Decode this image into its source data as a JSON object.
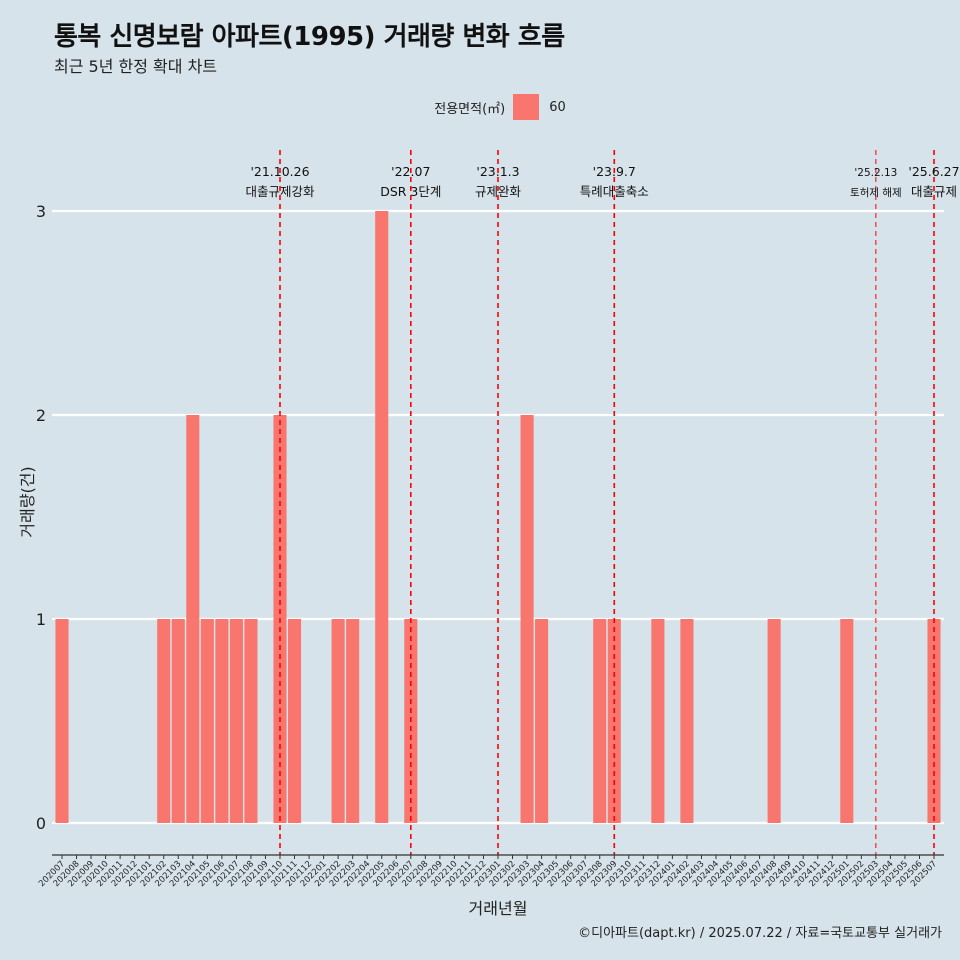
{
  "title": "통복 신명보람 아파트(1995) 거래량 변화 흐름",
  "subtitle": "최근 5년 한정 확대 차트",
  "legend": {
    "title": "전용면적(㎡)",
    "label": "60"
  },
  "caption": "©디아파트(dapt.kr) / 2025.07.22 / 자료=국토교통부 실거래가",
  "colors": {
    "background": "#d7e3ea",
    "bar": "#f8766d",
    "grid": "#ffffff",
    "event_line": "#ff0000",
    "text": "#222222"
  },
  "chart_data": {
    "type": "bar",
    "xlabel": "거래년월",
    "ylabel": "거래량(건)",
    "ylim": [
      0,
      3
    ],
    "yticks": [
      0,
      1,
      2,
      3
    ],
    "grid": true,
    "legend_position": "top",
    "categories": [
      "202007",
      "202008",
      "202009",
      "202010",
      "202011",
      "202012",
      "202101",
      "202102",
      "202103",
      "202104",
      "202105",
      "202106",
      "202107",
      "202108",
      "202109",
      "202110",
      "202111",
      "202112",
      "202201",
      "202202",
      "202203",
      "202204",
      "202205",
      "202206",
      "202207",
      "202208",
      "202209",
      "202210",
      "202211",
      "202212",
      "202301",
      "202302",
      "202303",
      "202304",
      "202305",
      "202306",
      "202307",
      "202308",
      "202309",
      "202310",
      "202311",
      "202312",
      "202401",
      "202402",
      "202403",
      "202404",
      "202405",
      "202406",
      "202407",
      "202408",
      "202409",
      "202410",
      "202411",
      "202412",
      "202501",
      "202502",
      "202503",
      "202504",
      "202505",
      "202506",
      "202507"
    ],
    "series": [
      {
        "name": "60",
        "values": [
          1,
          0,
          0,
          0,
          0,
          0,
          0,
          1,
          1,
          2,
          1,
          1,
          1,
          1,
          0,
          2,
          1,
          0,
          0,
          1,
          1,
          0,
          3,
          0,
          1,
          0,
          0,
          0,
          0,
          0,
          0,
          0,
          2,
          1,
          0,
          0,
          0,
          1,
          1,
          0,
          0,
          1,
          0,
          1,
          0,
          0,
          0,
          0,
          0,
          1,
          0,
          0,
          0,
          0,
          1,
          0,
          0,
          0,
          0,
          0,
          1
        ]
      }
    ],
    "events": [
      {
        "category": "202110",
        "date": "'21.10.26",
        "label": "대출규제강화",
        "small": false
      },
      {
        "category": "202207",
        "date": "'22.07",
        "label": "DSR 3단계",
        "small": false
      },
      {
        "category": "202301",
        "date": "'23.1.3",
        "label": "규제완화",
        "small": false
      },
      {
        "category": "202309",
        "date": "'23.9.7",
        "label": "특례대출축소",
        "small": false
      },
      {
        "category": "202503",
        "date": "'25.2.13",
        "label": "토허제 해제",
        "small": true
      },
      {
        "category": "202507",
        "date": "'25.6.27",
        "label": "대출규제",
        "small": false
      }
    ]
  }
}
